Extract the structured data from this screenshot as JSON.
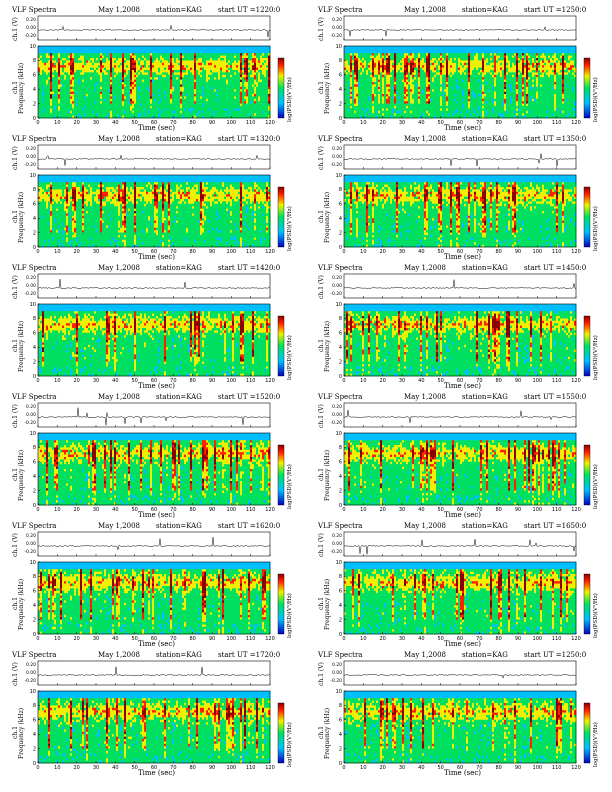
{
  "chart_data": [
    {
      "type": "heatmap",
      "panel": 1,
      "title": "VLF Spectra",
      "date": "May 1,2008",
      "station": "station=KAG",
      "start": "start  UT  =1220:0",
      "ch_label": "ch.1 (V)",
      "waveform_ticks": [
        "0.20",
        "0.00",
        "-0.20"
      ],
      "ylabel": "ch.1\nFrequency (kHz)",
      "ylim": [
        0,
        10
      ],
      "yticks": [
        "0",
        "2",
        "4",
        "6",
        "8",
        "10"
      ],
      "xlabel": "Time (sec)",
      "xlim": [
        0,
        120
      ],
      "xticks": [
        "0",
        "10",
        "20",
        "30",
        "40",
        "50",
        "60",
        "70",
        "80",
        "90",
        "100",
        "110",
        "120"
      ],
      "colorbar_label": "log(PSD)(V²/Hz)"
    },
    {
      "type": "heatmap",
      "panel": 2,
      "title": "VLF Spectra",
      "date": "May 1,2008",
      "station": "station=KAG",
      "start": "start  UT  =1250:0",
      "ch_label": "ch.1 (V)",
      "waveform_ticks": [
        "0.20",
        "0.00",
        "-0.20"
      ],
      "ylabel": "ch.1\nFrequency (kHz)",
      "ylim": [
        0,
        10
      ],
      "yticks": [
        "0",
        "2",
        "4",
        "6",
        "8",
        "10"
      ],
      "xlabel": "Time (sec)",
      "xlim": [
        0,
        120
      ],
      "xticks": [
        "0",
        "10",
        "20",
        "30",
        "40",
        "50",
        "60",
        "70",
        "80",
        "90",
        "100",
        "110",
        "120"
      ],
      "colorbar_label": "log(PSD)(V²/Hz)"
    },
    {
      "type": "heatmap",
      "panel": 3,
      "title": "VLF Spectra",
      "date": "May 1,2008",
      "station": "station=KAG",
      "start": "start  UT  =1320:0",
      "ch_label": "ch.1 (V)",
      "waveform_ticks": [
        "0.20",
        "0.00",
        "-0.20"
      ],
      "ylabel": "ch.1\nFrequency (kHz)",
      "ylim": [
        0,
        10
      ],
      "yticks": [
        "0",
        "2",
        "4",
        "6",
        "8",
        "10"
      ],
      "xlabel": "Time (sec)",
      "xlim": [
        0,
        120
      ],
      "xticks": [
        "0",
        "10",
        "20",
        "30",
        "40",
        "50",
        "60",
        "70",
        "80",
        "90",
        "100",
        "110",
        "120"
      ],
      "colorbar_label": "log(PSD)(V²/Hz)"
    },
    {
      "type": "heatmap",
      "panel": 4,
      "title": "VLF Spectra",
      "date": "May 1,2008",
      "station": "station=KAG",
      "start": "start  UT  =1350:0",
      "ch_label": "ch.1 (V)",
      "waveform_ticks": [
        "0.20",
        "0.00",
        "-0.20"
      ],
      "ylabel": "ch.1\nFrequency (kHz)",
      "ylim": [
        0,
        10
      ],
      "yticks": [
        "0",
        "2",
        "4",
        "6",
        "8",
        "10"
      ],
      "xlabel": "Time (sec)",
      "xlim": [
        0,
        120
      ],
      "xticks": [
        "0",
        "10",
        "20",
        "30",
        "40",
        "50",
        "60",
        "70",
        "80",
        "90",
        "100",
        "110",
        "120"
      ],
      "colorbar_label": "log(PSD)(V²/Hz)"
    },
    {
      "type": "heatmap",
      "panel": 5,
      "title": "VLF Spectra",
      "date": "May 1,2008",
      "station": "station=KAG",
      "start": "start  UT  =1420:0",
      "ch_label": "ch.1 (V)",
      "waveform_ticks": [
        "0.20",
        "0.00",
        "-0.20"
      ],
      "ylabel": "ch.1\nFrequency (kHz)",
      "ylim": [
        0,
        10
      ],
      "yticks": [
        "0",
        "2",
        "4",
        "6",
        "8",
        "10"
      ],
      "xlabel": "Time (sec)",
      "xlim": [
        0,
        120
      ],
      "xticks": [
        "0",
        "10",
        "20",
        "30",
        "40",
        "50",
        "60",
        "70",
        "80",
        "90",
        "100",
        "110",
        "120"
      ],
      "colorbar_label": "log(PSD)(V²/Hz)"
    },
    {
      "type": "heatmap",
      "panel": 6,
      "title": "VLF Spectra",
      "date": "May 1,2008",
      "station": "station=KAG",
      "start": "start  UT  =1450:0",
      "ch_label": "ch.1 (V)",
      "waveform_ticks": [
        "0.20",
        "0.00",
        "-0.20"
      ],
      "ylabel": "ch.1\nFrequency (kHz)",
      "ylim": [
        0,
        10
      ],
      "yticks": [
        "0",
        "2",
        "4",
        "6",
        "8",
        "10"
      ],
      "xlabel": "Time (sec)",
      "xlim": [
        0,
        120
      ],
      "xticks": [
        "0",
        "10",
        "20",
        "30",
        "40",
        "50",
        "60",
        "70",
        "80",
        "90",
        "100",
        "110",
        "120"
      ],
      "colorbar_label": "log(PSD)(V²/Hz)"
    },
    {
      "type": "heatmap",
      "panel": 7,
      "title": "VLF Spectra",
      "date": "May 1,2008",
      "station": "station=KAG",
      "start": "start  UT  =1520:0",
      "ch_label": "ch.1 (V)",
      "waveform_ticks": [
        "0.20",
        "0.00",
        "-0.20"
      ],
      "ylabel": "ch.1\nFrequency (kHz)",
      "ylim": [
        0,
        10
      ],
      "yticks": [
        "0",
        "2",
        "4",
        "6",
        "8",
        "10"
      ],
      "xlabel": "Time (sec)",
      "xlim": [
        0,
        120
      ],
      "xticks": [
        "0",
        "10",
        "20",
        "30",
        "40",
        "50",
        "60",
        "70",
        "80",
        "90",
        "100",
        "110",
        "120"
      ],
      "colorbar_label": "log(PSD)(V²/Hz)"
    },
    {
      "type": "heatmap",
      "panel": 8,
      "title": "VLF Spectra",
      "date": "May 1,2008",
      "station": "station=KAG",
      "start": "start  UT  =1550:0",
      "ch_label": "ch.1 (V)",
      "waveform_ticks": [
        "0.20",
        "0.00",
        "-0.20"
      ],
      "ylabel": "ch.1\nFrequency (kHz)",
      "ylim": [
        0,
        10
      ],
      "yticks": [
        "0",
        "2",
        "4",
        "6",
        "8",
        "10"
      ],
      "xlabel": "Time (sec)",
      "xlim": [
        0,
        120
      ],
      "xticks": [
        "0",
        "10",
        "20",
        "30",
        "40",
        "50",
        "60",
        "70",
        "80",
        "90",
        "100",
        "110",
        "120"
      ],
      "colorbar_label": "log(PSD)(V²/Hz)"
    },
    {
      "type": "heatmap",
      "panel": 9,
      "title": "VLF Spectra",
      "date": "May 1,2008",
      "station": "station=KAG",
      "start": "start  UT  =1620:0",
      "ch_label": "ch.1 (V)",
      "waveform_ticks": [
        "0.20",
        "0.00",
        "-0.20"
      ],
      "ylabel": "ch.1\nFrequency (kHz)",
      "ylim": [
        0,
        10
      ],
      "yticks": [
        "0",
        "2",
        "4",
        "6",
        "8",
        "10"
      ],
      "xlabel": "Time (sec)",
      "xlim": [
        0,
        120
      ],
      "xticks": [
        "0",
        "10",
        "20",
        "30",
        "40",
        "50",
        "60",
        "70",
        "80",
        "90",
        "100",
        "110",
        "120"
      ],
      "colorbar_label": "log(PSD)(V²/Hz)"
    },
    {
      "type": "heatmap",
      "panel": 10,
      "title": "VLF Spectra",
      "date": "May 1,2008",
      "station": "station=KAG",
      "start": "start  UT  =1650:0",
      "ch_label": "ch.1 (V)",
      "waveform_ticks": [
        "0.20",
        "0.00",
        "-0.20"
      ],
      "ylabel": "ch.1\nFrequency (kHz)",
      "ylim": [
        0,
        10
      ],
      "yticks": [
        "0",
        "2",
        "4",
        "6",
        "8",
        "10"
      ],
      "xlabel": "Time (sec)",
      "xlim": [
        0,
        120
      ],
      "xticks": [
        "0",
        "10",
        "20",
        "30",
        "40",
        "50",
        "60",
        "70",
        "80",
        "90",
        "100",
        "110",
        "120"
      ],
      "colorbar_label": "log(PSD)(V²/Hz)"
    },
    {
      "type": "heatmap",
      "panel": 11,
      "title": "VLF Spectra",
      "date": "May 1,2008",
      "station": "station=KAG",
      "start": "start  UT  =1720:0",
      "ch_label": "ch.1 (V)",
      "waveform_ticks": [
        "0.20",
        "0.00",
        "-0.20"
      ],
      "ylabel": "ch.1\nFrequency (kHz)",
      "ylim": [
        0,
        10
      ],
      "yticks": [
        "0",
        "2",
        "4",
        "6",
        "8",
        "10"
      ],
      "xlabel": "Time (sec)",
      "xlim": [
        0,
        120
      ],
      "xticks": [
        "0",
        "10",
        "20",
        "30",
        "40",
        "50",
        "60",
        "70",
        "80",
        "90",
        "100",
        "110",
        "120"
      ],
      "colorbar_label": "log(PSD)(V²/Hz)"
    },
    {
      "type": "heatmap",
      "panel": 12,
      "title": "VLF Spectra",
      "date": "May 1,2008",
      "station": "station=KAG",
      "start": "start  UT  =1250:0",
      "ch_label": "ch.1 (V)",
      "waveform_ticks": [
        "0.20",
        "0.00",
        "-0.20"
      ],
      "ylabel": "ch.1\nFrequency (kHz)",
      "ylim": [
        0,
        10
      ],
      "yticks": [
        "0",
        "2",
        "4",
        "6",
        "8",
        "10"
      ],
      "xlabel": "Time (sec)",
      "xlim": [
        0,
        120
      ],
      "xticks": [
        "0",
        "10",
        "20",
        "30",
        "40",
        "50",
        "60",
        "70",
        "80",
        "90",
        "100",
        "110",
        "120"
      ],
      "colorbar_label": "log(PSD)(V²/Hz)"
    }
  ],
  "colors": {
    "cold": "#0000c0",
    "cool": "#00bfff",
    "mid": "#00e060",
    "warm": "#f0f000",
    "hot": "#ff2000",
    "dark": "#8b0000",
    "background": "#ffffff"
  }
}
